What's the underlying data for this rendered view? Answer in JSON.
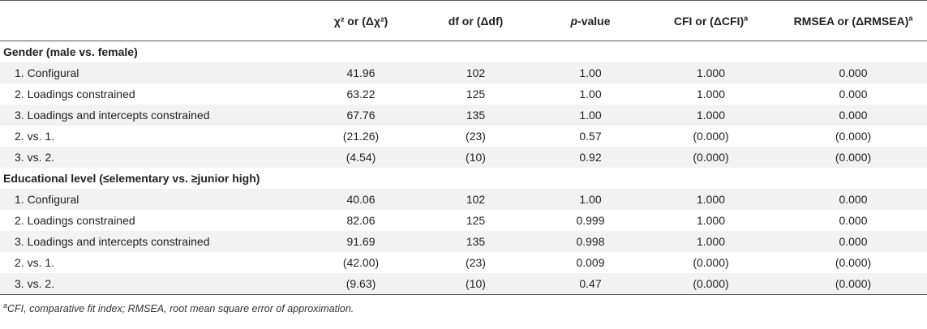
{
  "table": {
    "header": {
      "col0": "",
      "col1": "χ² or (Δχ²)",
      "col2": "df or (Δdf)",
      "col3_italic": "p",
      "col3_rest": "-value",
      "col4": "CFI or (ΔCFI)",
      "col4_sup": "a",
      "col5": "RMSEA or (ΔRMSEA)",
      "col5_sup": "a"
    },
    "groups": [
      {
        "title": "Gender (male vs. female)",
        "rows": [
          {
            "label": "1. Configural",
            "chi": "41.96",
            "df": "102",
            "p": "1.00",
            "cfi": "1.000",
            "rmsea": "0.000"
          },
          {
            "label": "2. Loadings constrained",
            "chi": "63.22",
            "df": "125",
            "p": "1.00",
            "cfi": "1.000",
            "rmsea": "0.000"
          },
          {
            "label": "3. Loadings and intercepts constrained",
            "chi": "67.76",
            "df": "135",
            "p": "1.00",
            "cfi": "1.000",
            "rmsea": "0.000"
          },
          {
            "label": "2. vs. 1.",
            "chi": "(21.26)",
            "df": "(23)",
            "p": "0.57",
            "cfi": "(0.000)",
            "rmsea": "(0.000)"
          },
          {
            "label": "3. vs. 2.",
            "chi": "(4.54)",
            "df": "(10)",
            "p": "0.92",
            "cfi": "(0.000)",
            "rmsea": "(0.000)"
          }
        ]
      },
      {
        "title": "Educational level (≤elementary vs. ≥junior high)",
        "rows": [
          {
            "label": "1. Configural",
            "chi": "40.06",
            "df": "102",
            "p": "1.00",
            "cfi": "1.000",
            "rmsea": "0.000"
          },
          {
            "label": "2. Loadings constrained",
            "chi": "82.06",
            "df": "125",
            "p": "0.999",
            "cfi": "1.000",
            "rmsea": "0.000"
          },
          {
            "label": "3. Loadings and intercepts constrained",
            "chi": "91.69",
            "df": "135",
            "p": "0.998",
            "cfi": "1.000",
            "rmsea": "0.000"
          },
          {
            "label": "2. vs. 1.",
            "chi": "(42.00)",
            "df": "(23)",
            "p": "0.009",
            "cfi": "(0.000)",
            "rmsea": "(0.000)"
          },
          {
            "label": "3. vs. 2.",
            "chi": "(9.63)",
            "df": "(10)",
            "p": "0.47",
            "cfi": "(0.000)",
            "rmsea": "(0.000)"
          }
        ]
      }
    ],
    "footnote_sup": "a",
    "footnote": "CFI, comparative fit index; RMSEA, root mean square error of approximation."
  }
}
